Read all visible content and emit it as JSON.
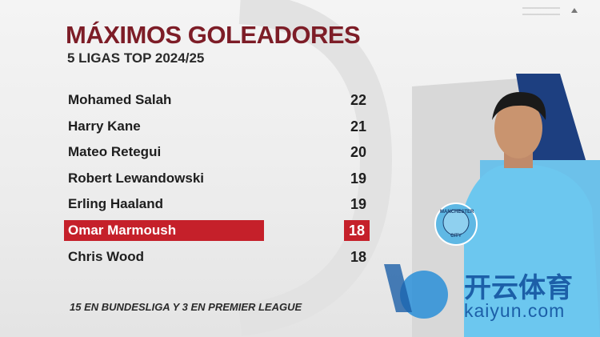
{
  "header": {
    "title": "MÁXIMOS GOLEADORES",
    "subtitle": "5 LIGAS TOP 2024/25"
  },
  "table": {
    "rows": [
      [
        "Mohamed Salah",
        "22"
      ],
      [
        "Harry Kane",
        "21"
      ],
      [
        "Mateo Retegui",
        "20"
      ],
      [
        "Robert Lewandowski",
        "19"
      ],
      [
        "Erling Haaland",
        "19"
      ],
      [
        "Omar Marmoush",
        "18"
      ],
      [
        "Chris Wood",
        "18"
      ]
    ],
    "highlight_row": 5
  },
  "footnote": "15 EN BUNDESLIGA Y 3 EN PREMIER LEAGUE",
  "badge": [
    "MANCHESTER",
    "CITY"
  ],
  "watermark": [
    "开云体育",
    "kaiyun.com"
  ]
}
